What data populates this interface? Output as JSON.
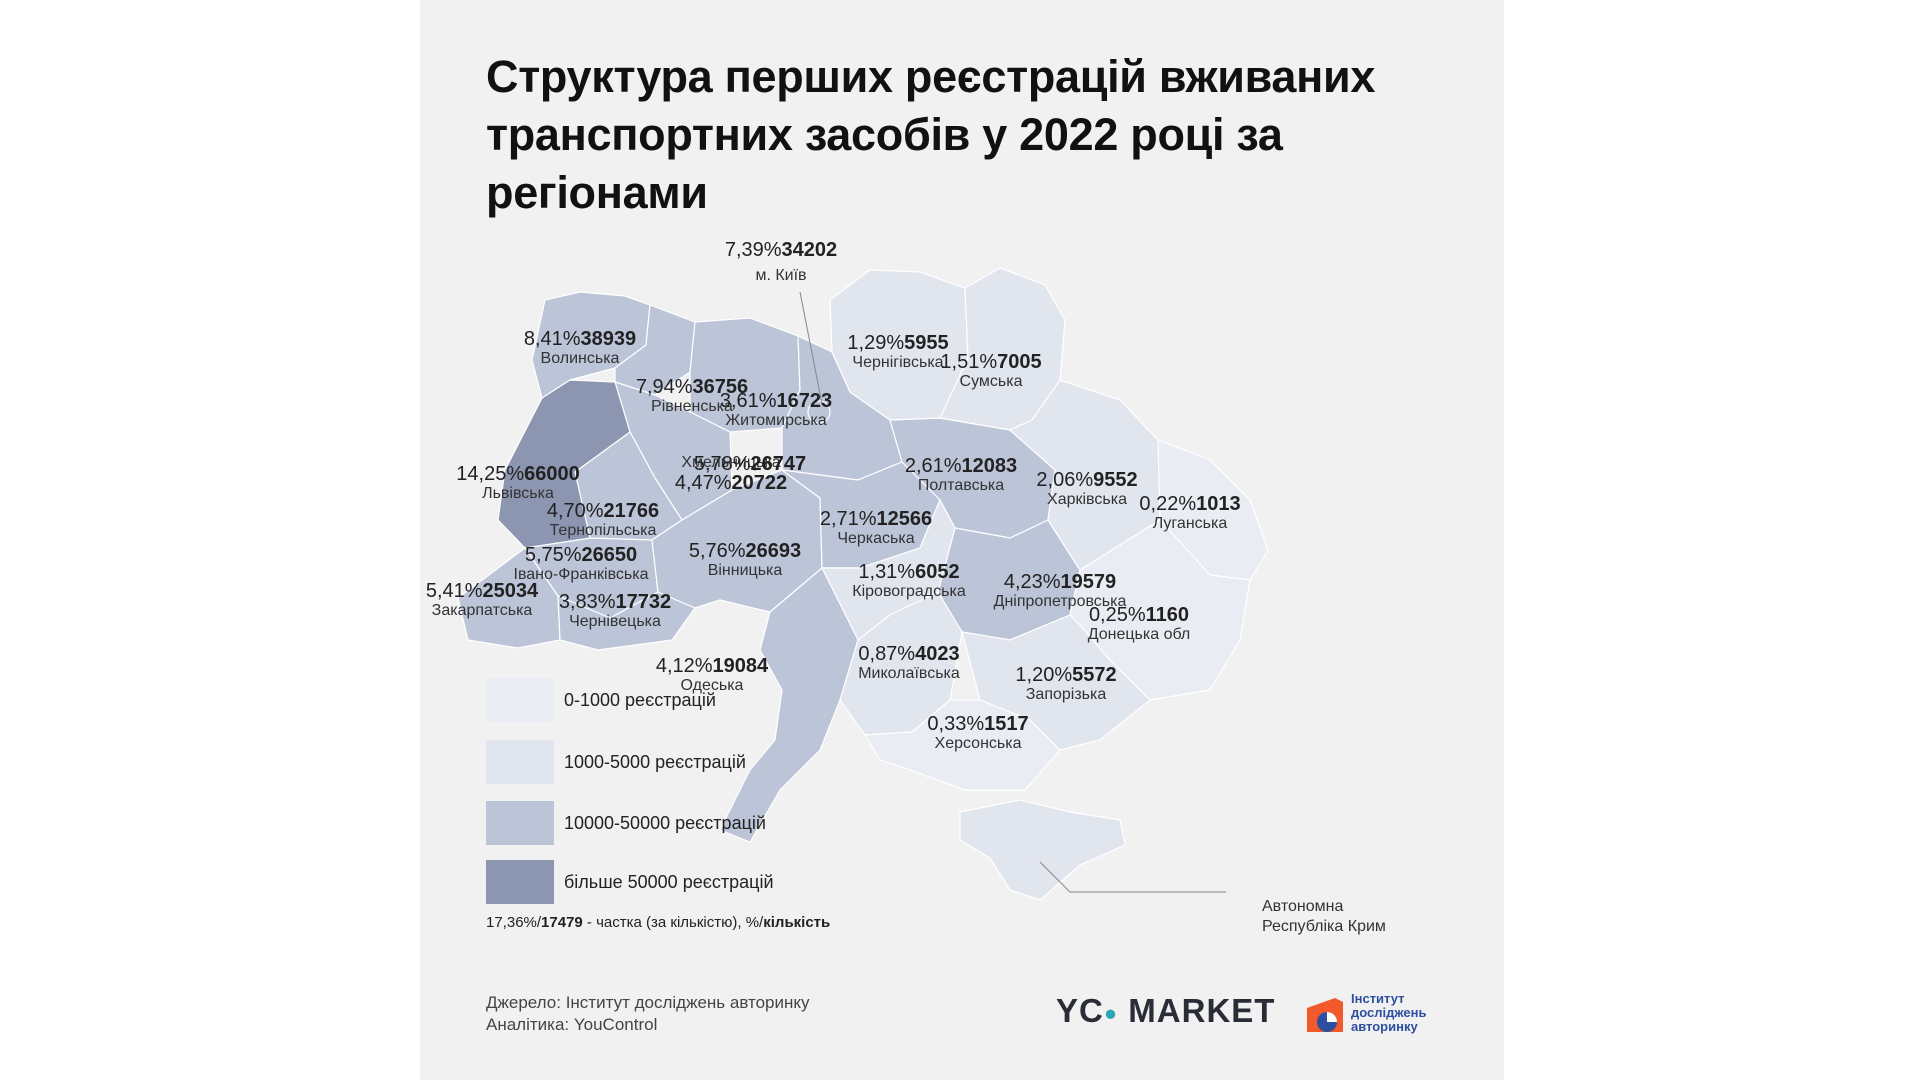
{
  "title": "Структура перших реєстрацій вживаних транспортних засобів у 2022 році за регіонами",
  "colors": {
    "background": "#f1f1f2",
    "bin_0_1000": "#e9ecf3",
    "bin_1000_5000": "#e1e5ee",
    "bin_10000_50000": "#bcc4d8",
    "bin_50000_plus": "#8d96b1",
    "logo_orange": "#f2592b",
    "logo_blue": "#2d4fa0"
  },
  "regions": [
    {
      "id": "kyiv-city",
      "name": "м. Київ",
      "share": "7,39%",
      "count": "34202"
    },
    {
      "id": "volynska",
      "name": "Волинська",
      "share": "8,41%",
      "count": "38939"
    },
    {
      "id": "rivnenska",
      "name": "Рівненська",
      "share": "7,94%",
      "count": "36756"
    },
    {
      "id": "zhytomyrska",
      "name": "Житомирська",
      "share": "3,61%",
      "count": "16723"
    },
    {
      "id": "chernihivska",
      "name": "Чернігівська",
      "share": "1,29%",
      "count": "5955"
    },
    {
      "id": "sumska",
      "name": "Сумська",
      "share": "1,51%",
      "count": "7005"
    },
    {
      "id": "lvivska",
      "name": "Львівська",
      "share": "14,25%",
      "count": "66000"
    },
    {
      "id": "khmelnytska",
      "name": "Хмельницька",
      "share": "4,47%",
      "count": "20722"
    },
    {
      "id": "kyivska",
      "name": "",
      "share": "5,78%",
      "count": "26747"
    },
    {
      "id": "poltavska",
      "name": "Полтавська",
      "share": "2,61%",
      "count": "12083"
    },
    {
      "id": "kharkivska",
      "name": "Харківська",
      "share": "2,06%",
      "count": "9552"
    },
    {
      "id": "luhanska",
      "name": "Луганська",
      "share": "0,22%",
      "count": "1013"
    },
    {
      "id": "ternopilska",
      "name": "Тернопільська",
      "share": "4,70%",
      "count": "21766"
    },
    {
      "id": "cherkaska",
      "name": "Черкаська",
      "share": "2,71%",
      "count": "12566"
    },
    {
      "id": "ivano-frankivska",
      "name": "Івано-Франківська",
      "share": "5,75%",
      "count": "26650"
    },
    {
      "id": "vinnytska",
      "name": "Вінницька",
      "share": "5,76%",
      "count": "26693"
    },
    {
      "id": "kirovohradska",
      "name": "Кіровоградська",
      "share": "1,31%",
      "count": "6052"
    },
    {
      "id": "dnipropetrovska",
      "name": "Дніпропетровська",
      "share": "4,23%",
      "count": "19579"
    },
    {
      "id": "zakarpatska",
      "name": "Закарпатська",
      "share": "5,41%",
      "count": "25034"
    },
    {
      "id": "chernivetska",
      "name": "Чернівецька",
      "share": "3,83%",
      "count": "17732"
    },
    {
      "id": "donetska",
      "name": "Донецька обл",
      "share": "0,25%",
      "count": "1160"
    },
    {
      "id": "odeska",
      "name": "Одеська",
      "share": "4,12%",
      "count": "19084"
    },
    {
      "id": "mykolaivska",
      "name": "Миколаївська",
      "share": "0,87%",
      "count": "4023"
    },
    {
      "id": "zaporizka",
      "name": "Запорізька",
      "share": "1,20%",
      "count": "5572"
    },
    {
      "id": "khersonska",
      "name": "Херсонська",
      "share": "0,33%",
      "count": "1517"
    }
  ],
  "crimea_label": "Автономна Республіка Крим",
  "legend": [
    {
      "label": "0-1000 реєстрацій"
    },
    {
      "label": "1000-5000 реєстрацій"
    },
    {
      "label": "10000-50000 реєстрацій"
    },
    {
      "label": "більше 50000 реєстрацій"
    }
  ],
  "legend_note": {
    "share": "17,36%/",
    "count": "17479",
    "text": " - частка (за кількістю), %/",
    "text_bold": "кількість"
  },
  "source_line": "Джерело: Інститут досліджень авторинку",
  "analytics_line": "Аналітика: YouControl",
  "logos": {
    "yc_left": "YC",
    "yc_right": " MARKET",
    "iar_line1": "Інститут",
    "iar_line2": "досліджень",
    "iar_line3": "авторинку"
  }
}
